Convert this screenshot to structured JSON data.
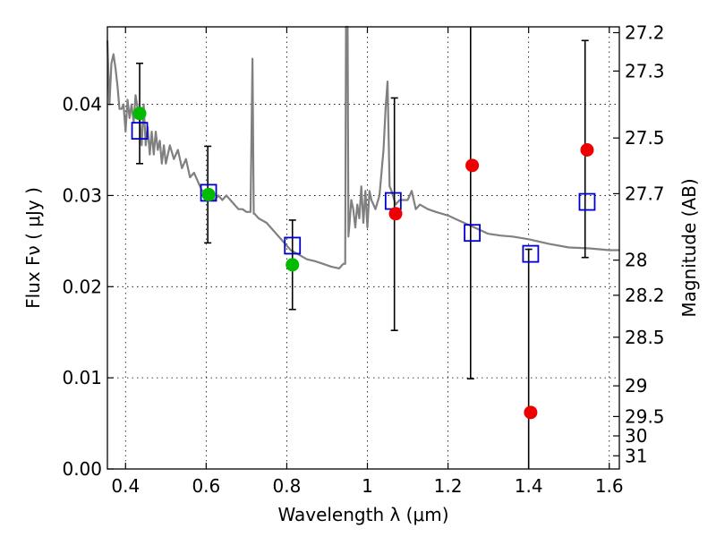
{
  "chart_data": {
    "type": "scatter",
    "title": "",
    "xlabel": "Wavelength  λ (μm)",
    "ylabel": "Flux  Fν  ( μJy )",
    "y2label": "Magnitude (AB)",
    "xlim": [
      0.355,
      1.625
    ],
    "ylim": [
      0.0,
      0.0485
    ],
    "grid": true,
    "x_ticks": [
      0.4,
      0.6,
      0.8,
      1.0,
      1.2,
      1.4,
      1.6
    ],
    "x_tick_labels": [
      "0.4",
      "0.6",
      "0.8",
      "1",
      "1.2",
      "1.4",
      "1.6"
    ],
    "y_ticks": [
      0.0,
      0.01,
      0.02,
      0.03,
      0.04
    ],
    "y_tick_labels": [
      "0.00",
      "0.01",
      "0.02",
      "0.03",
      "0.04"
    ],
    "y2_ticks": [
      27.2,
      27.3,
      27.5,
      27.7,
      28,
      28.2,
      28.5,
      29,
      29.5,
      30,
      31
    ],
    "y2_tick_labels": [
      "27.2",
      "27.3",
      "27.5",
      "27.7",
      "28",
      "28.2",
      "28.5",
      "29",
      "29.5",
      "30",
      "31"
    ],
    "colors": {
      "template": "#808080",
      "green_points": "#00bb00",
      "red_points": "#ee0000",
      "model_boxes": "#0000cc",
      "errorbars": "#000000"
    },
    "template_spectrum": {
      "x": [
        0.355,
        0.36,
        0.365,
        0.37,
        0.375,
        0.38,
        0.385,
        0.39,
        0.395,
        0.4,
        0.405,
        0.41,
        0.415,
        0.42,
        0.425,
        0.43,
        0.435,
        0.44,
        0.445,
        0.45,
        0.455,
        0.46,
        0.465,
        0.47,
        0.475,
        0.48,
        0.485,
        0.49,
        0.495,
        0.5,
        0.51,
        0.52,
        0.53,
        0.54,
        0.55,
        0.56,
        0.57,
        0.58,
        0.59,
        0.6,
        0.61,
        0.62,
        0.63,
        0.64,
        0.65,
        0.66,
        0.67,
        0.68,
        0.69,
        0.7,
        0.71,
        0.715,
        0.718,
        0.72,
        0.73,
        0.75,
        0.77,
        0.79,
        0.81,
        0.83,
        0.85,
        0.87,
        0.89,
        0.91,
        0.93,
        0.94,
        0.945,
        0.947,
        0.949,
        0.951,
        0.953,
        0.955,
        0.96,
        0.965,
        0.97,
        0.975,
        0.98,
        0.985,
        0.99,
        0.995,
        1.0,
        1.005,
        1.01,
        1.02,
        1.03,
        1.04,
        1.045,
        1.05,
        1.055,
        1.06,
        1.07,
        1.08,
        1.09,
        1.1,
        1.11,
        1.12,
        1.13,
        1.15,
        1.17,
        1.2,
        1.23,
        1.25,
        1.28,
        1.3,
        1.33,
        1.36,
        1.4,
        1.45,
        1.5,
        1.55,
        1.6,
        1.625
      ],
      "y": [
        0.047,
        0.04,
        0.0445,
        0.0455,
        0.044,
        0.042,
        0.0395,
        0.0395,
        0.04,
        0.037,
        0.0405,
        0.0385,
        0.04,
        0.038,
        0.041,
        0.0395,
        0.0385,
        0.0355,
        0.04,
        0.0355,
        0.0375,
        0.0345,
        0.037,
        0.0345,
        0.037,
        0.035,
        0.036,
        0.0335,
        0.0355,
        0.0335,
        0.0355,
        0.034,
        0.035,
        0.033,
        0.034,
        0.032,
        0.0325,
        0.0315,
        0.0305,
        0.0305,
        0.0305,
        0.0295,
        0.03,
        0.0295,
        0.03,
        0.0295,
        0.029,
        0.0285,
        0.0285,
        0.0282,
        0.0282,
        0.045,
        0.028,
        0.028,
        0.0275,
        0.027,
        0.026,
        0.025,
        0.024,
        0.0235,
        0.023,
        0.0228,
        0.0225,
        0.0222,
        0.022,
        0.0225,
        0.0225,
        0.05,
        0.0485,
        0.0485,
        0.0255,
        0.0265,
        0.0295,
        0.0285,
        0.0265,
        0.029,
        0.0275,
        0.031,
        0.027,
        0.0305,
        0.0265,
        0.0305,
        0.0295,
        0.0285,
        0.03,
        0.035,
        0.0395,
        0.0425,
        0.031,
        0.0305,
        0.029,
        0.0295,
        0.0295,
        0.0295,
        0.0305,
        0.0285,
        0.029,
        0.0285,
        0.0282,
        0.0278,
        0.0272,
        0.0268,
        0.0262,
        0.0258,
        0.0256,
        0.0255,
        0.0252,
        0.0247,
        0.0243,
        0.0242,
        0.024,
        0.024
      ]
    },
    "green_points": [
      {
        "x": 0.435,
        "y": 0.039
      },
      {
        "x": 0.606,
        "y": 0.0301
      },
      {
        "x": 0.814,
        "y": 0.0224
      }
    ],
    "red_points": [
      {
        "x": 1.07,
        "y": 0.028
      },
      {
        "x": 1.26,
        "y": 0.0333
      },
      {
        "x": 1.405,
        "y": 0.0062
      },
      {
        "x": 1.545,
        "y": 0.035
      }
    ],
    "model_boxes": [
      {
        "x": 0.435,
        "y": 0.0371
      },
      {
        "x": 0.606,
        "y": 0.0303
      },
      {
        "x": 0.814,
        "y": 0.0245
      },
      {
        "x": 1.064,
        "y": 0.0294
      },
      {
        "x": 1.26,
        "y": 0.0259
      },
      {
        "x": 1.405,
        "y": 0.0236
      },
      {
        "x": 1.545,
        "y": 0.0293
      }
    ],
    "errorbars": [
      {
        "x": 0.435,
        "y_low": 0.0335,
        "y_high": 0.0445
      },
      {
        "x": 0.604,
        "y_low": 0.0248,
        "y_high": 0.0354
      },
      {
        "x": 0.814,
        "y_low": 0.0175,
        "y_high": 0.0273
      },
      {
        "x": 1.067,
        "y_low": 0.0152,
        "y_high": 0.0407
      },
      {
        "x": 1.256,
        "y_low": 0.0099,
        "y_high": 0.05
      },
      {
        "x": 1.4,
        "y_low": 0.0,
        "y_high": 0.0241
      },
      {
        "x": 1.54,
        "y_low": 0.0232,
        "y_high": 0.047
      }
    ]
  }
}
